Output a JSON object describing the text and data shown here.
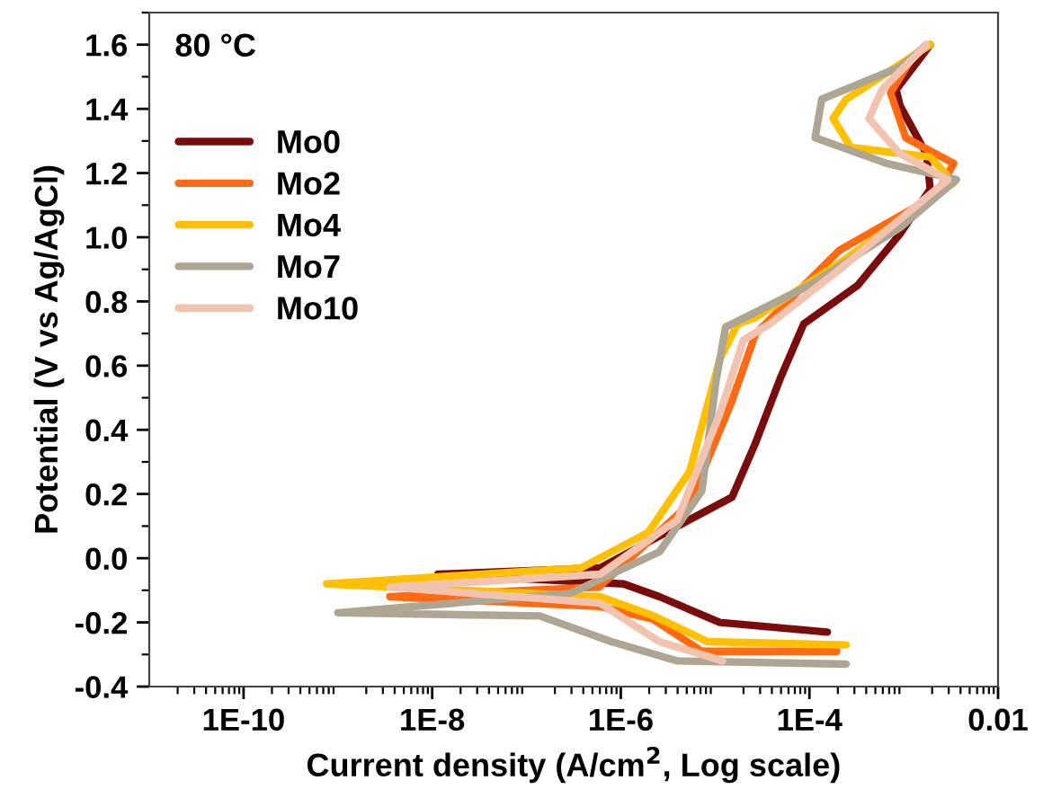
{
  "chart_data": {
    "type": "line",
    "xlabel": "Current density (A/cm$^{2}$, Log scale)",
    "ylabel": "Potential (V vs Ag/AgCl)",
    "annotations": [
      "80 °C"
    ],
    "log": "x",
    "xlim": [
      1e-11,
      0.01
    ],
    "xticks": [
      {
        "value": 1e-10,
        "label": "1E-10"
      },
      {
        "value": 1e-08,
        "label": "1E-8"
      },
      {
        "value": 1e-06,
        "label": "1E-6"
      },
      {
        "value": 0.0001,
        "label": "1E-4"
      },
      0.01
    ],
    "ylim": [
      -0.4,
      1.7
    ],
    "yticks": [
      {
        "value": -0.4,
        "label": "-0.4"
      },
      {
        "value": -0.2,
        "label": "-0.2"
      },
      {
        "value": 0.0,
        "label": "0.0"
      },
      {
        "value": 0.2,
        "label": "0.2"
      },
      {
        "value": 0.4,
        "label": "0.4"
      },
      {
        "value": 0.6,
        "label": "0.6"
      },
      {
        "value": 0.8,
        "label": "0.8"
      },
      {
        "value": 1.0,
        "label": "1.0"
      },
      {
        "value": 1.2,
        "label": "1.2"
      },
      {
        "value": 1.4,
        "label": "1.4"
      },
      {
        "value": 1.6,
        "label": "1.6"
      }
    ],
    "grid": false,
    "legend": "top left",
    "marker": "none",
    "line_style": "solid",
    "series": [
      {
        "name": "Mo0",
        "color": "#7b0c0c",
        "x": [
          0.000155,
          1.12e-05,
          2.57e-06,
          1.07e-06,
          1.15e-08,
          6.03e-07,
          5.37e-06,
          1.51e-05,
          2.69e-05,
          4.9e-05,
          8.71e-05,
          0.000324,
          0.000912,
          0.00191,
          0.00174,
          0.000912,
          0.000832,
          0.00191
        ],
        "values": [
          -0.23,
          -0.2,
          -0.12,
          -0.08,
          -0.05,
          -0.03,
          0.12,
          0.19,
          0.36,
          0.56,
          0.73,
          0.85,
          1.01,
          1.15,
          1.26,
          1.41,
          1.46,
          1.6
        ]
      },
      {
        "name": "Mo2",
        "color": "#ff6a13",
        "x": [
          0.000195,
          7.24e-06,
          2.19e-06,
          5.89e-07,
          3.55e-09,
          5.89e-07,
          5.37e-06,
          1.51e-05,
          2.69e-05,
          0.000209,
          0.00219,
          0.00339,
          0.00105,
          0.000724,
          0.00123,
          0.00174
        ],
        "values": [
          -0.29,
          -0.29,
          -0.19,
          -0.15,
          -0.12,
          -0.09,
          0.17,
          0.49,
          0.7,
          0.96,
          1.13,
          1.23,
          1.31,
          1.45,
          1.56,
          1.6
        ]
      },
      {
        "name": "Mo4",
        "color": "#ffc000",
        "x": [
          0.000245,
          8.32e-06,
          2.24e-06,
          6.03e-07,
          7.59e-10,
          3.8e-07,
          1.95e-06,
          5.37e-06,
          1.12e-05,
          1.74e-05,
          2.69e-05,
          0.000209,
          0.00339,
          0.00191,
          0.000275,
          0.000178,
          0.000245,
          0.00191
        ],
        "values": [
          -0.27,
          -0.26,
          -0.18,
          -0.12,
          -0.08,
          -0.03,
          0.08,
          0.27,
          0.62,
          0.73,
          0.75,
          0.92,
          1.17,
          1.25,
          1.28,
          1.37,
          1.43,
          1.6
        ]
      },
      {
        "name": "Mo7",
        "color": "#aea593",
        "x": [
          0.000245,
          3.98e-06,
          7.94e-07,
          1.38e-07,
          1e-09,
          2.88e-07,
          2.57e-06,
          7.24e-06,
          1.02e-05,
          1.29e-05,
          0.0001,
          0.000912,
          0.00363,
          0.000661,
          0.000115,
          0.000135,
          0.000912,
          0.00162
        ],
        "values": [
          -0.33,
          -0.32,
          -0.26,
          -0.18,
          -0.17,
          -0.11,
          0.02,
          0.21,
          0.55,
          0.72,
          0.85,
          1.03,
          1.18,
          1.23,
          1.31,
          1.43,
          1.53,
          1.59
        ]
      },
      {
        "name": "Mo10",
        "color": "#f2c4b0",
        "x": [
          1.2e-05,
          2.57e-06,
          6.03e-07,
          3.55e-09,
          6.03e-07,
          3.98e-06,
          1.12e-05,
          2e-05,
          3.8e-05,
          0.000209,
          0.00295,
          0.000912,
          0.000427,
          0.000589,
          0.00174
        ],
        "values": [
          -0.32,
          -0.26,
          -0.14,
          -0.09,
          -0.05,
          0.12,
          0.45,
          0.68,
          0.73,
          0.9,
          1.18,
          1.26,
          1.37,
          1.46,
          1.6
        ]
      }
    ]
  }
}
